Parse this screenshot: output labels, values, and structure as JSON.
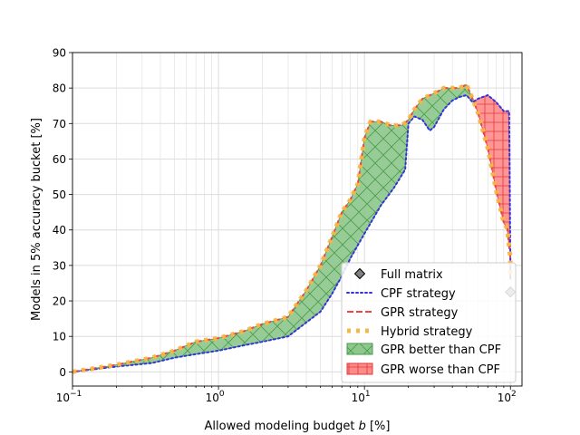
{
  "chart_data": {
    "type": "line",
    "title": "",
    "xlabel_prefix": "Allowed modeling budget ",
    "xlabel_var": "b",
    "xlabel_suffix": " [%]",
    "ylabel": "Models in 5% accuracy bucket [%]",
    "xscale": "log",
    "xlim": [
      0.1,
      120
    ],
    "ylim": [
      -4,
      90
    ],
    "yticks": [
      0,
      10,
      20,
      30,
      40,
      50,
      60,
      70,
      80,
      90
    ],
    "xticks": [
      {
        "value": 0.1,
        "base": "10",
        "exp": "−1"
      },
      {
        "value": 1,
        "base": "10",
        "exp": "0"
      },
      {
        "value": 10,
        "base": "10",
        "exp": "1"
      },
      {
        "value": 100,
        "base": "10",
        "exp": "2"
      }
    ],
    "grid": true,
    "legend_position": "lower-right",
    "colors": {
      "cpf": "#3333dd",
      "gpr": "#ee4444",
      "hybrid": "#f6b845",
      "better_fill": "#8cc78c",
      "better_edge": "#4a9a4a",
      "worse_fill": "#ff8a8a",
      "worse_edge": "#dd3b3b",
      "marker": "#808080"
    },
    "series": [
      {
        "name": "CPF strategy",
        "style": "dotted",
        "points": [
          [
            0.1,
            0
          ],
          [
            0.2,
            1.5
          ],
          [
            0.35,
            2.5
          ],
          [
            0.5,
            4
          ],
          [
            0.7,
            5
          ],
          [
            1,
            6
          ],
          [
            1.5,
            7.5
          ],
          [
            2,
            8.5
          ],
          [
            3,
            10
          ],
          [
            5,
            17
          ],
          [
            6,
            22
          ],
          [
            7,
            27
          ],
          [
            8,
            32
          ],
          [
            10,
            39
          ],
          [
            13,
            47
          ],
          [
            16,
            52
          ],
          [
            19,
            57
          ],
          [
            20,
            70
          ],
          [
            22,
            72
          ],
          [
            25,
            71
          ],
          [
            28,
            68
          ],
          [
            30,
            69
          ],
          [
            35,
            74
          ],
          [
            40,
            76.5
          ],
          [
            45,
            77.5
          ],
          [
            50,
            78
          ],
          [
            55,
            76
          ],
          [
            60,
            77
          ],
          [
            70,
            78
          ],
          [
            80,
            76
          ],
          [
            90,
            73.5
          ],
          [
            98,
            73.5
          ],
          [
            100,
            30
          ],
          [
            100,
            26
          ]
        ]
      },
      {
        "name": "GPR strategy",
        "style": "dashed",
        "points": [
          [
            0.1,
            0
          ],
          [
            0.2,
            2
          ],
          [
            0.35,
            4
          ],
          [
            0.5,
            6
          ],
          [
            0.7,
            8.5
          ],
          [
            1,
            9.5
          ],
          [
            1.5,
            11.5
          ],
          [
            2,
            13.5
          ],
          [
            3,
            15.5
          ],
          [
            4,
            23
          ],
          [
            5,
            30
          ],
          [
            6,
            38
          ],
          [
            7,
            45
          ],
          [
            8,
            48.5
          ],
          [
            9,
            53
          ],
          [
            10,
            66
          ],
          [
            11,
            70.5
          ],
          [
            13,
            70.5
          ],
          [
            15,
            69.5
          ],
          [
            18,
            69.5
          ],
          [
            20,
            71
          ],
          [
            22,
            74
          ],
          [
            25,
            77
          ],
          [
            30,
            78.5
          ],
          [
            35,
            80
          ],
          [
            40,
            80
          ],
          [
            45,
            80
          ],
          [
            50,
            81
          ],
          [
            55,
            77
          ],
          [
            60,
            73
          ],
          [
            70,
            63
          ],
          [
            80,
            51
          ],
          [
            90,
            42
          ],
          [
            95,
            40.5
          ],
          [
            100,
            32
          ],
          [
            100,
            26
          ]
        ]
      },
      {
        "name": "Hybrid strategy",
        "style": "dotted-thick",
        "points": [
          [
            0.1,
            0
          ],
          [
            0.2,
            2
          ],
          [
            0.35,
            4
          ],
          [
            0.5,
            6
          ],
          [
            0.7,
            8.5
          ],
          [
            1,
            9.5
          ],
          [
            1.5,
            11.5
          ],
          [
            2,
            13.5
          ],
          [
            3,
            15.5
          ],
          [
            4,
            23
          ],
          [
            5,
            30
          ],
          [
            6,
            38
          ],
          [
            7,
            45
          ],
          [
            8,
            48.5
          ],
          [
            9,
            53
          ],
          [
            10,
            66
          ],
          [
            11,
            70.5
          ],
          [
            13,
            70.5
          ],
          [
            15,
            69.5
          ],
          [
            18,
            69.5
          ],
          [
            20,
            71
          ],
          [
            22,
            74
          ],
          [
            25,
            77
          ],
          [
            30,
            78.5
          ],
          [
            35,
            80
          ],
          [
            40,
            80
          ],
          [
            45,
            80
          ],
          [
            50,
            81
          ],
          [
            55,
            77
          ],
          [
            60,
            73
          ],
          [
            70,
            63
          ],
          [
            80,
            51
          ],
          [
            90,
            42
          ],
          [
            95,
            40.5
          ],
          [
            100,
            32
          ],
          [
            100,
            26
          ]
        ]
      }
    ],
    "full_matrix": {
      "name": "Full matrix",
      "x": 100,
      "y": 22.5
    },
    "fill_labels": {
      "better": "GPR better than CPF",
      "worse": "GPR worse than CPF"
    }
  }
}
